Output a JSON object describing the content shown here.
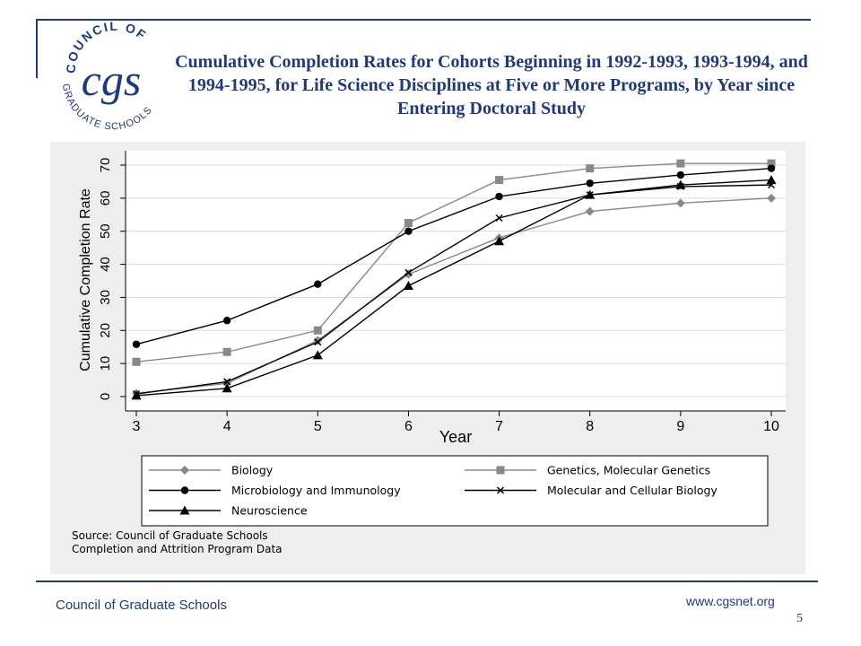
{
  "logo": {
    "arc_text": "COUNCIL OF",
    "monogram": "cgs",
    "bottom_text": "GRADUATE SCHOOLS"
  },
  "title": "Cumulative Completion Rates for Cohorts Beginning in 1992-1993, 1993-1994, and 1994-1995, for Life Science Disciplines at Five or More Programs, by Year since Entering Doctoral Study",
  "colors": {
    "brand_blue": "#1f3a7a",
    "panel_bg": "#eeeeee",
    "series_dark": "#000000",
    "series_gray": "#888888"
  },
  "chart_data": {
    "type": "line",
    "xlabel": "Year",
    "ylabel": "Cumulative Completion Rate",
    "x": [
      3,
      4,
      5,
      6,
      7,
      8,
      9,
      10
    ],
    "xlim": [
      3,
      10
    ],
    "ylim": [
      0,
      70
    ],
    "xticks": [
      "3",
      "4",
      "5",
      "6",
      "7",
      "8",
      "9",
      "10"
    ],
    "yticks": [
      "0",
      "10",
      "20",
      "30",
      "40",
      "50",
      "60",
      "70"
    ],
    "grid": true,
    "legend_position": "bottom",
    "series": [
      {
        "name": "Biology",
        "marker": "diamond",
        "color": "#888888",
        "values": [
          1,
          4,
          17,
          37,
          48,
          56,
          58.5,
          60
        ]
      },
      {
        "name": "Genetics, Molecular Genetics",
        "marker": "square",
        "color": "#888888",
        "values": [
          10.5,
          13.5,
          20,
          52.5,
          65.5,
          69,
          70.5,
          70.5
        ]
      },
      {
        "name": "Microbiology and Immunology",
        "marker": "circle",
        "color": "#000000",
        "values": [
          15.8,
          23,
          34,
          50,
          60.5,
          64.5,
          67,
          69
        ]
      },
      {
        "name": "Molecular and Cellular Biology",
        "marker": "x",
        "color": "#000000",
        "values": [
          0.8,
          4.5,
          16.5,
          37.5,
          54,
          61,
          63.5,
          64
        ]
      },
      {
        "name": "Neuroscience",
        "marker": "triangle",
        "color": "#000000",
        "values": [
          0.3,
          2.5,
          12.5,
          33.5,
          47,
          61,
          64,
          65.5
        ]
      }
    ]
  },
  "source": {
    "line1": "Source: Council of Graduate Schools",
    "line2": "Completion and Attrition Program Data"
  },
  "footer": {
    "org": "Council of Graduate Schools",
    "url": "www.cgsnet.org",
    "page_number": "5"
  }
}
